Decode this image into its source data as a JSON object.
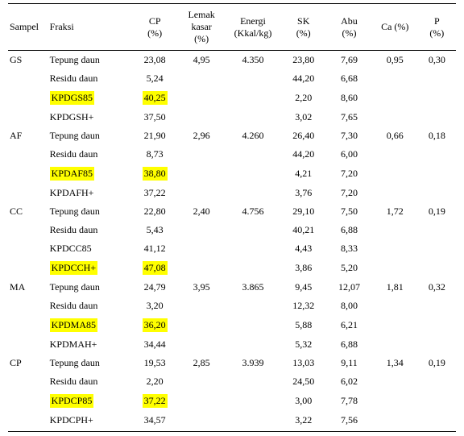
{
  "columns": [
    {
      "label": "Sampel"
    },
    {
      "label": "Fraksi"
    },
    {
      "label": "CP\n(%)"
    },
    {
      "label": "Lemak\nkasar\n(%)"
    },
    {
      "label": "Energi\n(Kkal/kg)"
    },
    {
      "label": "SK\n(%)"
    },
    {
      "label": "Abu\n(%)"
    },
    {
      "label": "Ca (%)"
    },
    {
      "label": "P\n(%)"
    }
  ],
  "highlight_color": "#ffff00",
  "background_color": "#ffffff",
  "text_color": "#000000",
  "font_family": "Times New Roman",
  "font_size_pt": 9,
  "rows": [
    {
      "sampel": "GS",
      "fraksi": "Tepung daun",
      "cp": "23,08",
      "lemak": "4,95",
      "energi": "4.350",
      "sk": "23,80",
      "abu": "7,69",
      "ca": "0,95",
      "p": "0,30",
      "hl_fraksi": false,
      "hl_cp": false
    },
    {
      "sampel": "",
      "fraksi": "Residu daun",
      "cp": "5,24",
      "lemak": "",
      "energi": "",
      "sk": "44,20",
      "abu": "6,68",
      "ca": "",
      "p": "",
      "hl_fraksi": false,
      "hl_cp": false
    },
    {
      "sampel": "",
      "fraksi": "KPDGS85",
      "cp": "40,25",
      "lemak": "",
      "energi": "",
      "sk": "2,20",
      "abu": "8,60",
      "ca": "",
      "p": "",
      "hl_fraksi": true,
      "hl_cp": true
    },
    {
      "sampel": "",
      "fraksi": "KPDGSH+",
      "cp": "37,50",
      "lemak": "",
      "energi": "",
      "sk": "3,02",
      "abu": "7,65",
      "ca": "",
      "p": "",
      "hl_fraksi": false,
      "hl_cp": false
    },
    {
      "sampel": "AF",
      "fraksi": "Tepung daun",
      "cp": "21,90",
      "lemak": "2,96",
      "energi": "4.260",
      "sk": "26,40",
      "abu": "7,30",
      "ca": "0,66",
      "p": "0,18",
      "hl_fraksi": false,
      "hl_cp": false
    },
    {
      "sampel": "",
      "fraksi": "Residu daun",
      "cp": "8,73",
      "lemak": "",
      "energi": "",
      "sk": "44,20",
      "abu": "6,00",
      "ca": "",
      "p": "",
      "hl_fraksi": false,
      "hl_cp": false
    },
    {
      "sampel": "",
      "fraksi": "KPDAF85",
      "cp": "38,80",
      "lemak": "",
      "energi": "",
      "sk": "4,21",
      "abu": "7,20",
      "ca": "",
      "p": "",
      "hl_fraksi": true,
      "hl_cp": true
    },
    {
      "sampel": "",
      "fraksi": "KPDAFH+",
      "cp": "37,22",
      "lemak": "",
      "energi": "",
      "sk": "3,76",
      "abu": "7,20",
      "ca": "",
      "p": "",
      "hl_fraksi": false,
      "hl_cp": false
    },
    {
      "sampel": "CC",
      "fraksi": "Tepung daun",
      "cp": "22,80",
      "lemak": "2,40",
      "energi": "4.756",
      "sk": "29,10",
      "abu": "7,50",
      "ca": "1,72",
      "p": "0,19",
      "hl_fraksi": false,
      "hl_cp": false
    },
    {
      "sampel": "",
      "fraksi": "Residu daun",
      "cp": "5,43",
      "lemak": "",
      "energi": "",
      "sk": "40,21",
      "abu": "6,88",
      "ca": "",
      "p": "",
      "hl_fraksi": false,
      "hl_cp": false
    },
    {
      "sampel": "",
      "fraksi": "KPDCC85",
      "cp": "41,12",
      "lemak": "",
      "energi": "",
      "sk": "4,43",
      "abu": "8,33",
      "ca": "",
      "p": "",
      "hl_fraksi": false,
      "hl_cp": false
    },
    {
      "sampel": "",
      "fraksi": "KPDCCH+",
      "cp": "47,08",
      "lemak": "",
      "energi": "",
      "sk": "3,86",
      "abu": "5,20",
      "ca": "",
      "p": "",
      "hl_fraksi": true,
      "hl_cp": true
    },
    {
      "sampel": "MA",
      "fraksi": "Tepung daun",
      "cp": "24,79",
      "lemak": "3,95",
      "energi": "3.865",
      "sk": "9,45",
      "abu": "12,07",
      "ca": "1,81",
      "p": "0,32",
      "hl_fraksi": false,
      "hl_cp": false
    },
    {
      "sampel": "",
      "fraksi": "Residu daun",
      "cp": "3,20",
      "lemak": "",
      "energi": "",
      "sk": "12,32",
      "abu": "8,00",
      "ca": "",
      "p": "",
      "hl_fraksi": false,
      "hl_cp": false
    },
    {
      "sampel": "",
      "fraksi": "KPDMA85",
      "cp": "36,20",
      "lemak": "",
      "energi": "",
      "sk": "5,88",
      "abu": "6,21",
      "ca": "",
      "p": "",
      "hl_fraksi": true,
      "hl_cp": true
    },
    {
      "sampel": "",
      "fraksi": "KPDMAH+",
      "cp": "34,44",
      "lemak": "",
      "energi": "",
      "sk": "5,32",
      "abu": "6,88",
      "ca": "",
      "p": "",
      "hl_fraksi": false,
      "hl_cp": false
    },
    {
      "sampel": "CP",
      "fraksi": "Tepung daun",
      "cp": "19,53",
      "lemak": "2,85",
      "energi": "3.939",
      "sk": "13,03",
      "abu": "9,11",
      "ca": "1,34",
      "p": "0,19",
      "hl_fraksi": false,
      "hl_cp": false
    },
    {
      "sampel": "",
      "fraksi": "Residu daun",
      "cp": "2,20",
      "lemak": "",
      "energi": "",
      "sk": "24,50",
      "abu": "6,02",
      "ca": "",
      "p": "",
      "hl_fraksi": false,
      "hl_cp": false
    },
    {
      "sampel": "",
      "fraksi": "KPDCP85",
      "cp": "37,22",
      "lemak": "",
      "energi": "",
      "sk": "3,00",
      "abu": "7,78",
      "ca": "",
      "p": "",
      "hl_fraksi": true,
      "hl_cp": true
    },
    {
      "sampel": "",
      "fraksi": "KPDCPH+",
      "cp": "34,57",
      "lemak": "",
      "energi": "",
      "sk": "3,22",
      "abu": "7,56",
      "ca": "",
      "p": "",
      "hl_fraksi": false,
      "hl_cp": false
    }
  ]
}
